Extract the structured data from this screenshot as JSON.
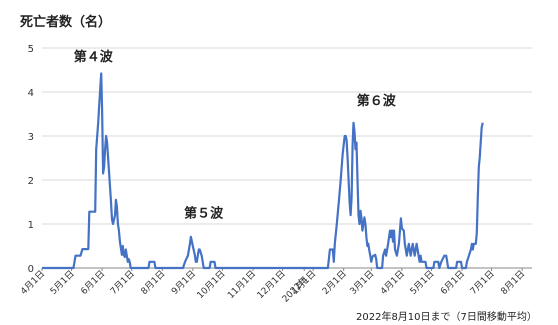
{
  "chart_data": {
    "type": "line",
    "title": "死亡者数（名）",
    "footnote": "2022年8月10日まで（7日間移動平均）",
    "ylim": [
      0,
      5
    ],
    "y_ticks": [
      "0",
      "1",
      "2",
      "3",
      "4",
      "5"
    ],
    "grid": true,
    "line_color": "#4472C4",
    "x_ticks": [
      {
        "label": "4月1日",
        "day": 0
      },
      {
        "label": "5月1日",
        "day": 30
      },
      {
        "label": "6月1日",
        "day": 61
      },
      {
        "label": "7月1日",
        "day": 91
      },
      {
        "label": "8月1日",
        "day": 122
      },
      {
        "label": "9月1日",
        "day": 153
      },
      {
        "label": "10月1日",
        "day": 183
      },
      {
        "label": "11月1日",
        "day": 214
      },
      {
        "label": "12月1日",
        "day": 244
      },
      {
        "label": "2022年",
        "day": 266
      },
      {
        "label": "1月1日",
        "day": 275
      },
      {
        "label": "2月1日",
        "day": 306
      },
      {
        "label": "3月1日",
        "day": 334
      },
      {
        "label": "4月1日",
        "day": 365
      },
      {
        "label": "5月1日",
        "day": 395
      },
      {
        "label": "6月1日",
        "day": 426
      },
      {
        "label": "7月1日",
        "day": 456
      },
      {
        "label": "8月1日",
        "day": 487
      }
    ],
    "x_range_days": [
      0,
      497
    ],
    "annotations": [
      {
        "text": "第４波",
        "day": 52,
        "y": 4.7
      },
      {
        "text": "第５波",
        "day": 164,
        "y": 1.15
      },
      {
        "text": "第６波",
        "day": 339,
        "y": 3.7
      }
    ],
    "series": [
      {
        "points": [
          [
            0,
            0
          ],
          [
            32,
            0
          ],
          [
            34,
            0.28
          ],
          [
            39,
            0.28
          ],
          [
            41,
            0.43
          ],
          [
            47,
            0.43
          ],
          [
            48,
            1.28
          ],
          [
            54,
            1.28
          ],
          [
            55,
            2.7
          ],
          [
            57,
            3.3
          ],
          [
            58,
            3.7
          ],
          [
            60,
            4.42
          ],
          [
            61,
            3.6
          ],
          [
            62,
            2.15
          ],
          [
            63,
            2.3
          ],
          [
            64,
            2.7
          ],
          [
            65,
            3.0
          ],
          [
            66,
            2.85
          ],
          [
            67,
            2.5
          ],
          [
            68,
            2.2
          ],
          [
            69,
            1.85
          ],
          [
            70,
            1.5
          ],
          [
            71,
            1.1
          ],
          [
            72,
            1.0
          ],
          [
            73,
            1.1
          ],
          [
            74,
            1.2
          ],
          [
            75,
            1.55
          ],
          [
            76,
            1.4
          ],
          [
            77,
            1.0
          ],
          [
            78,
            0.85
          ],
          [
            79,
            0.6
          ],
          [
            80,
            0.45
          ],
          [
            81,
            0.3
          ],
          [
            82,
            0.5
          ],
          [
            83,
            0.3
          ],
          [
            84,
            0.25
          ],
          [
            85,
            0.42
          ],
          [
            86,
            0.28
          ],
          [
            87,
            0.14
          ],
          [
            88,
            0.2
          ],
          [
            89,
            0.14
          ],
          [
            90,
            0
          ],
          [
            108,
            0
          ],
          [
            109,
            0.14
          ],
          [
            114,
            0.14
          ],
          [
            115,
            0
          ],
          [
            143,
            0
          ],
          [
            145,
            0.14
          ],
          [
            148,
            0.28
          ],
          [
            150,
            0.55
          ],
          [
            151,
            0.71
          ],
          [
            152,
            0.6
          ],
          [
            153,
            0.5
          ],
          [
            154,
            0.4
          ],
          [
            155,
            0.3
          ],
          [
            156,
            0.14
          ],
          [
            157,
            0.14
          ],
          [
            158,
            0.28
          ],
          [
            159,
            0.42
          ],
          [
            160,
            0.42
          ],
          [
            161,
            0.35
          ],
          [
            162,
            0.28
          ],
          [
            163,
            0.14
          ],
          [
            164,
            0
          ],
          [
            170,
            0
          ],
          [
            171,
            0.14
          ],
          [
            175,
            0.14
          ],
          [
            176,
            0
          ],
          [
            290,
            0
          ],
          [
            292,
            0.42
          ],
          [
            295,
            0.42
          ],
          [
            296,
            0.14
          ],
          [
            297,
            0.55
          ],
          [
            299,
            1.0
          ],
          [
            301,
            1.5
          ],
          [
            303,
            2.0
          ],
          [
            305,
            2.6
          ],
          [
            307,
            3.0
          ],
          [
            308,
            3.0
          ],
          [
            309,
            2.9
          ],
          [
            310,
            2.5
          ],
          [
            311,
            2.0
          ],
          [
            312,
            1.5
          ],
          [
            313,
            1.2
          ],
          [
            314,
            1.6
          ],
          [
            315,
            2.8
          ],
          [
            316,
            3.3
          ],
          [
            317,
            3.1
          ],
          [
            318,
            2.7
          ],
          [
            319,
            2.85
          ],
          [
            320,
            2.0
          ],
          [
            321,
            1.2
          ],
          [
            322,
            1.0
          ],
          [
            323,
            1.3
          ],
          [
            324,
            1.15
          ],
          [
            325,
            0.85
          ],
          [
            326,
            1.0
          ],
          [
            327,
            1.15
          ],
          [
            328,
            1.0
          ],
          [
            329,
            0.7
          ],
          [
            330,
            0.5
          ],
          [
            331,
            0.55
          ],
          [
            332,
            0.4
          ],
          [
            333,
            0.28
          ],
          [
            334,
            0.14
          ],
          [
            335,
            0.25
          ],
          [
            336,
            0.28
          ],
          [
            337,
            0.28
          ],
          [
            338,
            0.3
          ],
          [
            339,
            0.2
          ],
          [
            340,
            0
          ],
          [
            345,
            0
          ],
          [
            346,
            0.28
          ],
          [
            348,
            0.42
          ],
          [
            349,
            0.28
          ],
          [
            351,
            0.55
          ],
          [
            353,
            0.85
          ],
          [
            354,
            0.7
          ],
          [
            355,
            0.85
          ],
          [
            356,
            0.6
          ],
          [
            357,
            0.85
          ],
          [
            358,
            0.42
          ],
          [
            360,
            0.28
          ],
          [
            362,
            0.55
          ],
          [
            364,
            1.13
          ],
          [
            365,
            0.9
          ],
          [
            367,
            0.85
          ],
          [
            368,
            0.55
          ],
          [
            369,
            0.42
          ],
          [
            370,
            0.28
          ],
          [
            372,
            0.55
          ],
          [
            374,
            0.28
          ],
          [
            376,
            0.55
          ],
          [
            377,
            0.42
          ],
          [
            378,
            0.28
          ],
          [
            379,
            0.42
          ],
          [
            380,
            0.55
          ],
          [
            381,
            0.42
          ],
          [
            382,
            0.28
          ],
          [
            383,
            0.14
          ],
          [
            384,
            0.28
          ],
          [
            385,
            0.14
          ],
          [
            386,
            0.14
          ],
          [
            389,
            0.14
          ],
          [
            390,
            0
          ],
          [
            397,
            0
          ],
          [
            398,
            0.14
          ],
          [
            402,
            0.14
          ],
          [
            403,
            0
          ],
          [
            405,
            0.14
          ],
          [
            408,
            0.28
          ],
          [
            410,
            0.28
          ],
          [
            411,
            0.14
          ],
          [
            412,
            0
          ],
          [
            420,
            0
          ],
          [
            421,
            0.14
          ],
          [
            425,
            0.14
          ],
          [
            426,
            0
          ],
          [
            430,
            0
          ],
          [
            431,
            0.14
          ],
          [
            433,
            0.28
          ],
          [
            435,
            0.42
          ],
          [
            436,
            0.55
          ],
          [
            437,
            0.42
          ],
          [
            438,
            0.55
          ],
          [
            440,
            0.55
          ],
          [
            441,
            0.8
          ],
          [
            442,
            1.6
          ],
          [
            443,
            2.3
          ],
          [
            444,
            2.5
          ],
          [
            446,
            3.2
          ],
          [
            447,
            3.3
          ]
        ]
      }
    ]
  }
}
